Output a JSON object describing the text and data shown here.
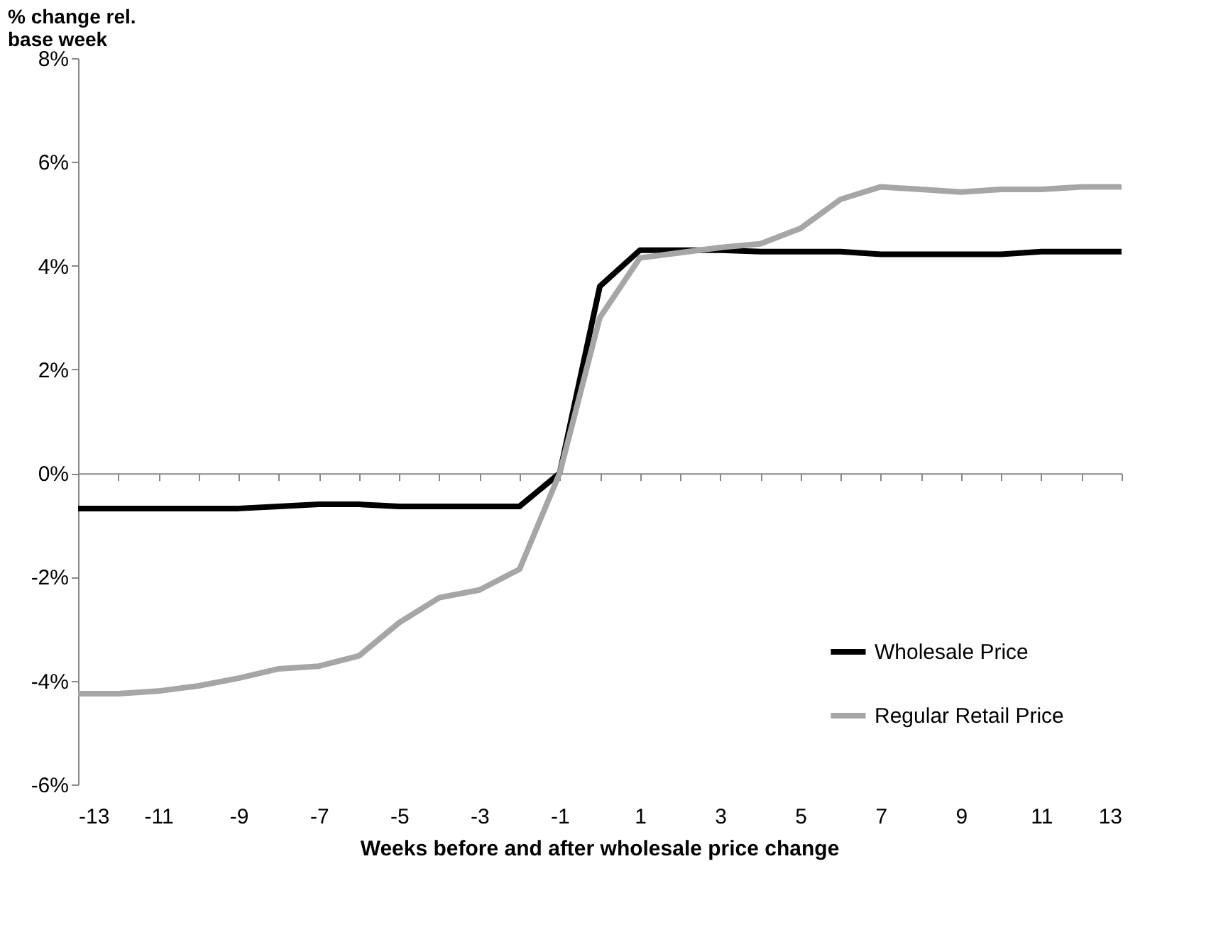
{
  "chart_data": {
    "type": "line",
    "ylabel": "% change rel. base week",
    "xlabel": "Weeks before and after wholesale price change",
    "x": [
      -13,
      -12,
      -11,
      -10,
      -9,
      -8,
      -7,
      -6,
      -5,
      -4,
      -3,
      -2,
      -1,
      0,
      1,
      2,
      3,
      4,
      5,
      6,
      7,
      8,
      9,
      10,
      11,
      12,
      13
    ],
    "series": [
      {
        "name": "Wholesale Price",
        "color": "#000000",
        "values": [
          -0.68,
          -0.68,
          -0.68,
          -0.68,
          -0.68,
          -0.64,
          -0.6,
          -0.6,
          -0.64,
          -0.64,
          -0.64,
          -0.64,
          0,
          3.6,
          4.3,
          4.3,
          4.3,
          4.27,
          4.27,
          4.27,
          4.22,
          4.22,
          4.22,
          4.22,
          4.27,
          4.27,
          4.27
        ]
      },
      {
        "name": "Regular Retail Price",
        "color": "#a6a6a6",
        "values": [
          -4.25,
          -4.25,
          -4.2,
          -4.1,
          -3.95,
          -3.77,
          -3.72,
          -3.52,
          -2.88,
          -2.4,
          -2.25,
          -1.85,
          0,
          3.0,
          4.15,
          4.25,
          4.35,
          4.42,
          4.72,
          5.28,
          5.52,
          5.47,
          5.42,
          5.47,
          5.47,
          5.52,
          5.52
        ]
      }
    ],
    "xlim": [
      -13,
      13
    ],
    "xticks": [
      -13,
      {
        "value": -12,
        "label": null
      },
      -11,
      {
        "value": -10,
        "label": null
      },
      -9,
      {
        "value": -8,
        "label": null
      },
      -7,
      {
        "value": -6,
        "label": null
      },
      -5,
      {
        "value": -4,
        "label": null
      },
      -3,
      {
        "value": -2,
        "label": null
      },
      -1,
      {
        "value": 0,
        "label": null
      },
      1,
      {
        "value": 2,
        "label": null
      },
      3,
      {
        "value": 4,
        "label": null
      },
      5,
      {
        "value": 6,
        "label": null
      },
      7,
      {
        "value": 8,
        "label": null
      },
      9,
      {
        "value": 10,
        "label": null
      },
      11,
      {
        "value": 12,
        "label": null
      },
      13
    ],
    "ylim": [
      -6,
      8
    ],
    "yticks": [
      {
        "value": -6,
        "label": "-6%"
      },
      {
        "value": -4,
        "label": "-4%"
      },
      {
        "value": -2,
        "label": "-2%"
      },
      {
        "value": 0,
        "label": "0%"
      },
      {
        "value": 2,
        "label": "2%"
      },
      {
        "value": 4,
        "label": "4%"
      },
      {
        "value": 6,
        "label": "6%"
      },
      {
        "value": 8,
        "label": "8%"
      }
    ],
    "legend": "bottom right",
    "marker": "none",
    "line_style": "solid"
  }
}
